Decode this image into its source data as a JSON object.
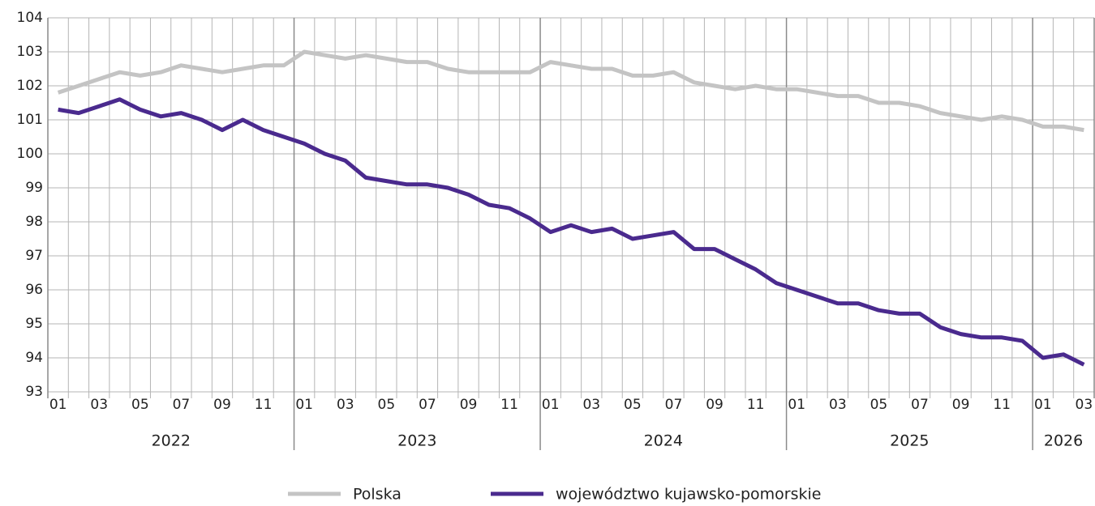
{
  "chart_data": {
    "type": "line",
    "categories": [
      "01",
      null,
      "03",
      null,
      "05",
      null,
      "07",
      null,
      "09",
      null,
      "11",
      null,
      "01",
      null,
      "03",
      null,
      "05",
      null,
      "07",
      null,
      "09",
      null,
      "11",
      null,
      "01",
      null,
      "03",
      null,
      "05",
      null,
      "07",
      null,
      "09",
      null,
      "11",
      null,
      "01",
      null,
      "03",
      null,
      "05",
      null,
      "07",
      null,
      "09",
      null,
      "11",
      null,
      "01",
      null,
      "03"
    ],
    "x_groups": [
      {
        "label": "2022",
        "count": 12
      },
      {
        "label": "2023",
        "count": 12
      },
      {
        "label": "2024",
        "count": 12
      },
      {
        "label": "2025",
        "count": 12
      },
      {
        "label": "2026",
        "count": 3
      }
    ],
    "series": [
      {
        "name": "Polska",
        "color": "#c4c4c4",
        "values": [
          101.8,
          102.0,
          102.2,
          102.4,
          102.3,
          102.4,
          102.6,
          102.5,
          102.4,
          102.5,
          102.6,
          102.6,
          103.0,
          102.9,
          102.8,
          102.9,
          102.8,
          102.7,
          102.7,
          102.5,
          102.4,
          102.4,
          102.4,
          102.4,
          102.7,
          102.6,
          102.5,
          102.5,
          102.3,
          102.3,
          102.4,
          102.1,
          102.0,
          101.9,
          102.0,
          101.9,
          101.9,
          101.8,
          101.7,
          101.7,
          101.5,
          101.5,
          101.4,
          101.2,
          101.1,
          101.0,
          101.1,
          101.0,
          100.8,
          100.8,
          100.7
        ]
      },
      {
        "name": "województwo kujawsko-pomorskie",
        "color": "#4a2a8e",
        "values": [
          101.3,
          101.2,
          101.4,
          101.6,
          101.3,
          101.1,
          101.2,
          101.0,
          100.7,
          101.0,
          100.7,
          100.5,
          100.3,
          100.0,
          99.8,
          99.3,
          99.2,
          99.1,
          99.1,
          99.0,
          98.8,
          98.5,
          98.4,
          98.1,
          97.7,
          97.9,
          97.7,
          97.8,
          97.5,
          97.6,
          97.7,
          97.2,
          97.2,
          96.9,
          96.6,
          96.2,
          96.0,
          95.8,
          95.6,
          95.6,
          95.4,
          95.3,
          95.3,
          94.9,
          94.7,
          94.6,
          94.6,
          94.5,
          94.0,
          94.1,
          93.8
        ]
      }
    ],
    "ylim": [
      93,
      104
    ],
    "yticks": [
      93,
      94,
      95,
      96,
      97,
      98,
      99,
      100,
      101,
      102,
      103,
      104
    ],
    "grid": true
  }
}
